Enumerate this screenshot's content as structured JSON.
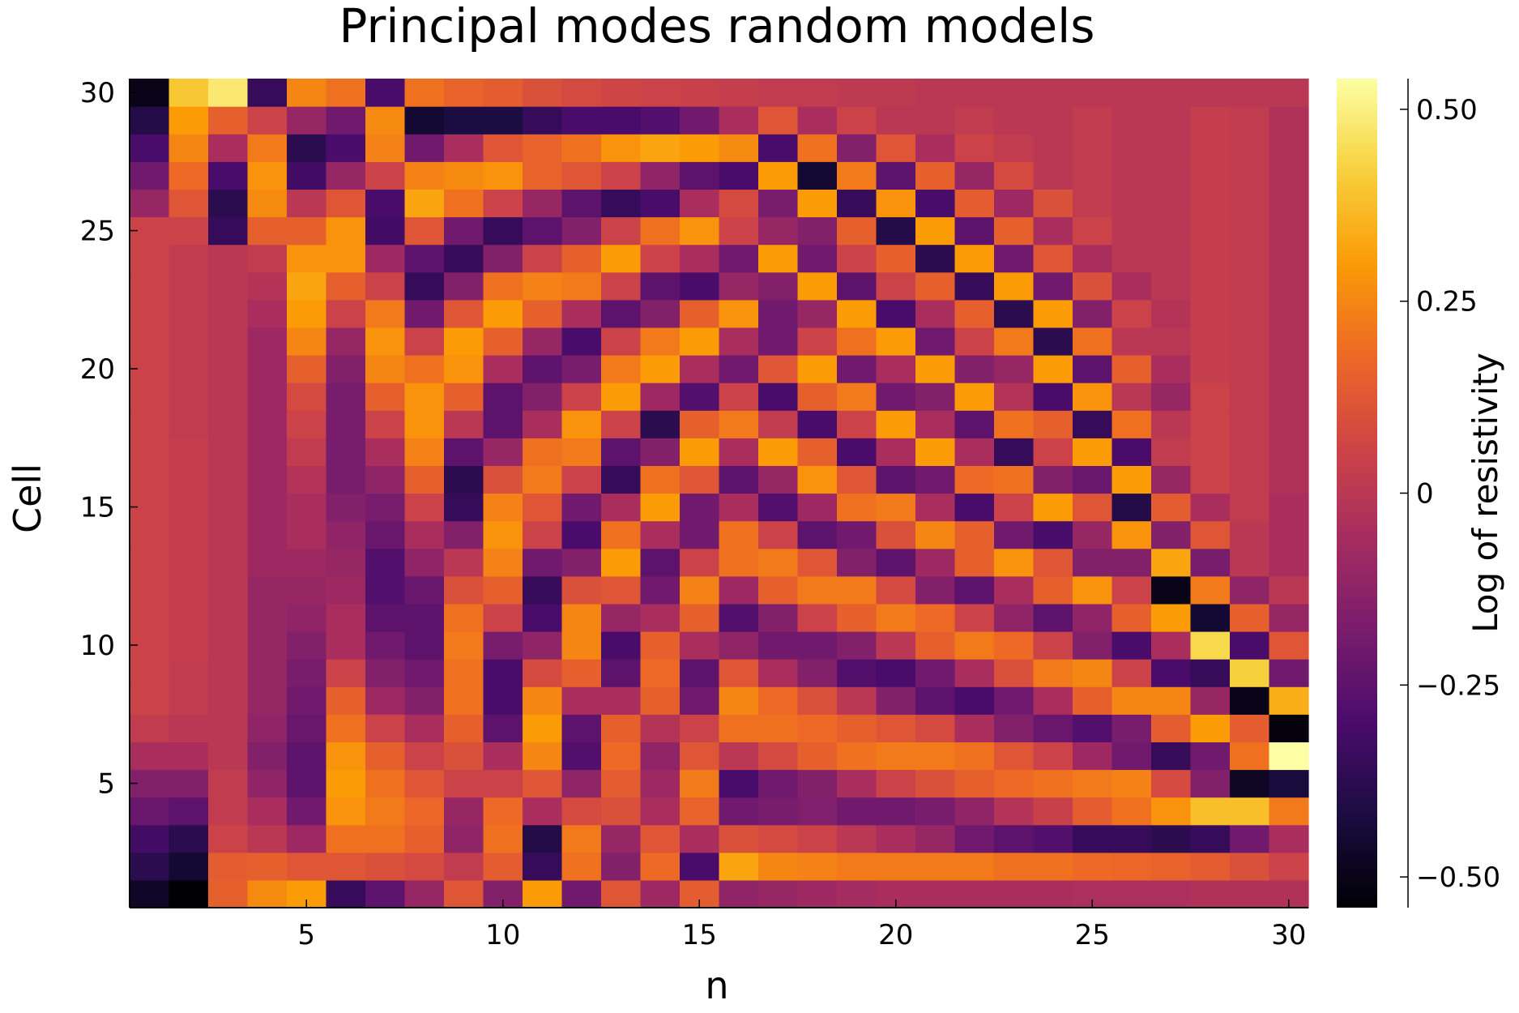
{
  "chart_data": {
    "type": "heatmap",
    "title": "Principal modes random models",
    "xlabel": "n",
    "ylabel": "Cell",
    "colorbar_label": "Log of resistivity",
    "x_ticks": [
      5,
      10,
      15,
      20,
      25,
      30
    ],
    "y_ticks": [
      5,
      10,
      15,
      20,
      25,
      30
    ],
    "colorbar_ticks": [
      {
        "value": 0.5,
        "label": "0.50"
      },
      {
        "value": 0.25,
        "label": "0.25"
      },
      {
        "value": 0,
        "label": "0"
      },
      {
        "value": -0.25,
        "label": "−0.25"
      },
      {
        "value": -0.5,
        "label": "−0.50"
      }
    ],
    "x_range": [
      0.5,
      30.5
    ],
    "y_range": [
      0.5,
      30.5
    ],
    "z_range": [
      -0.54,
      0.54
    ],
    "colormap": "inferno",
    "colormap_stops": [
      "#000004",
      "#1b0c41",
      "#4a0c6b",
      "#781c6d",
      "#a52c60",
      "#cf4446",
      "#ed6925",
      "#fb9b06",
      "#f7d13d",
      "#fcffa4"
    ],
    "grid": false,
    "legend": "colorbar-right",
    "rows_note": "values[i][j]: cell i+1 (1 = bottom), mode n = j+1",
    "values": [
      [
        -0.47,
        -0.54,
        0.15,
        0.26,
        0.3,
        -0.35,
        -0.25,
        -0.1,
        0.12,
        -0.15,
        0.3,
        -0.2,
        0.12,
        -0.08,
        0.14,
        -0.12,
        -0.1,
        -0.08,
        -0.06,
        -0.05,
        -0.05,
        -0.05,
        -0.05,
        -0.05,
        -0.04,
        -0.04,
        -0.04,
        -0.03,
        -0.03,
        -0.03
      ],
      [
        -0.38,
        -0.45,
        0.14,
        0.15,
        0.12,
        0.12,
        0.1,
        0.08,
        0.02,
        0.14,
        -0.35,
        0.2,
        -0.15,
        0.18,
        -0.3,
        0.32,
        0.25,
        0.24,
        0.22,
        0.22,
        0.22,
        0.22,
        0.2,
        0.2,
        0.18,
        0.17,
        0.16,
        0.14,
        0.1,
        0.05
      ],
      [
        -0.32,
        -0.38,
        0.05,
        0.0,
        -0.08,
        0.2,
        0.2,
        0.15,
        -0.12,
        0.2,
        -0.4,
        0.22,
        -0.1,
        0.12,
        -0.05,
        0.1,
        0.08,
        0.05,
        0.0,
        -0.05,
        -0.1,
        -0.2,
        -0.25,
        -0.28,
        -0.35,
        -0.35,
        -0.38,
        -0.35,
        -0.2,
        -0.05
      ],
      [
        -0.22,
        -0.25,
        0.02,
        -0.05,
        -0.2,
        0.28,
        0.22,
        0.17,
        -0.1,
        0.18,
        -0.05,
        0.08,
        0.1,
        -0.05,
        0.16,
        -0.2,
        -0.18,
        -0.16,
        -0.2,
        -0.2,
        -0.18,
        -0.12,
        -0.02,
        0.04,
        0.14,
        0.2,
        0.28,
        0.38,
        0.38,
        0.22
      ],
      [
        -0.15,
        -0.15,
        0.02,
        -0.12,
        -0.25,
        0.3,
        0.2,
        0.12,
        0.05,
        0.05,
        0.12,
        -0.12,
        0.14,
        -0.08,
        0.22,
        -0.3,
        -0.2,
        -0.15,
        -0.05,
        0.05,
        0.1,
        0.15,
        0.18,
        0.2,
        0.22,
        0.24,
        0.08,
        -0.15,
        -0.48,
        -0.43
      ],
      [
        -0.05,
        -0.05,
        0.0,
        -0.15,
        -0.25,
        0.28,
        0.15,
        0.05,
        0.1,
        -0.05,
        0.25,
        -0.28,
        0.18,
        -0.12,
        0.12,
        0.0,
        0.08,
        0.15,
        0.2,
        0.22,
        0.22,
        0.2,
        0.12,
        0.05,
        -0.08,
        -0.2,
        -0.35,
        -0.2,
        0.2,
        0.54
      ],
      [
        0.02,
        0.0,
        0.0,
        -0.12,
        -0.22,
        0.2,
        0.05,
        -0.05,
        0.15,
        -0.25,
        0.3,
        -0.25,
        0.15,
        -0.02,
        0.05,
        0.2,
        0.2,
        0.18,
        0.15,
        0.12,
        0.08,
        -0.05,
        -0.15,
        -0.22,
        -0.28,
        -0.18,
        0.14,
        0.3,
        0.14,
        -0.52
      ],
      [
        0.05,
        0.02,
        0.0,
        -0.1,
        -0.2,
        0.15,
        -0.08,
        -0.15,
        0.2,
        -0.3,
        0.25,
        -0.05,
        -0.05,
        0.15,
        -0.2,
        0.25,
        0.18,
        0.1,
        0.0,
        -0.15,
        -0.25,
        -0.3,
        -0.2,
        -0.05,
        0.15,
        0.25,
        0.25,
        -0.1,
        -0.5,
        0.34
      ],
      [
        0.05,
        0.02,
        0.0,
        -0.1,
        -0.18,
        0.05,
        -0.15,
        -0.2,
        0.2,
        -0.3,
        0.08,
        0.15,
        -0.25,
        0.18,
        -0.25,
        0.12,
        -0.05,
        -0.15,
        -0.28,
        -0.3,
        -0.2,
        -0.05,
        0.1,
        0.22,
        0.25,
        0.05,
        -0.3,
        -0.35,
        0.42,
        -0.2
      ],
      [
        0.05,
        0.03,
        0.0,
        -0.1,
        -0.15,
        -0.05,
        -0.2,
        -0.25,
        0.22,
        -0.18,
        -0.12,
        0.25,
        -0.3,
        0.15,
        -0.05,
        -0.12,
        -0.2,
        -0.2,
        -0.15,
        0.0,
        0.15,
        0.22,
        0.18,
        0.05,
        -0.15,
        -0.3,
        -0.05,
        0.44,
        -0.3,
        0.12
      ],
      [
        0.05,
        0.03,
        0.0,
        -0.1,
        -0.12,
        -0.05,
        -0.25,
        -0.25,
        0.2,
        0.05,
        -0.3,
        0.25,
        -0.1,
        -0.05,
        0.15,
        -0.28,
        -0.15,
        0.05,
        0.15,
        0.22,
        0.18,
        0.05,
        -0.12,
        -0.25,
        -0.12,
        0.15,
        0.3,
        -0.45,
        0.15,
        -0.1
      ],
      [
        0.05,
        0.03,
        0.0,
        -0.1,
        -0.1,
        -0.08,
        -0.28,
        -0.22,
        0.1,
        0.15,
        -0.35,
        0.1,
        0.12,
        -0.2,
        0.24,
        -0.08,
        0.15,
        0.22,
        0.22,
        0.08,
        -0.15,
        -0.25,
        -0.05,
        0.15,
        0.28,
        0.05,
        -0.5,
        0.22,
        -0.12,
        0.0
      ],
      [
        0.05,
        0.03,
        0.0,
        -0.08,
        -0.08,
        -0.1,
        -0.28,
        -0.12,
        0.0,
        0.24,
        -0.2,
        -0.15,
        0.3,
        -0.25,
        0.05,
        0.2,
        0.22,
        0.12,
        -0.15,
        -0.25,
        -0.08,
        0.15,
        0.28,
        0.12,
        -0.15,
        -0.15,
        0.32,
        -0.18,
        0.0,
        -0.05
      ],
      [
        0.05,
        0.03,
        0.0,
        -0.08,
        -0.05,
        -0.12,
        -0.22,
        -0.05,
        -0.15,
        0.28,
        0.05,
        -0.3,
        0.2,
        -0.05,
        -0.2,
        0.2,
        0.05,
        -0.25,
        -0.2,
        0.1,
        0.25,
        0.15,
        -0.2,
        -0.3,
        -0.1,
        0.28,
        -0.15,
        0.12,
        0.0,
        -0.05
      ],
      [
        0.05,
        0.03,
        0.0,
        -0.08,
        -0.05,
        -0.15,
        -0.18,
        0.05,
        -0.35,
        0.24,
        0.12,
        -0.2,
        -0.05,
        0.3,
        -0.2,
        -0.05,
        -0.28,
        -0.08,
        0.2,
        0.22,
        -0.05,
        -0.3,
        0.05,
        0.3,
        0.12,
        -0.4,
        0.14,
        -0.05,
        0.02,
        -0.05
      ],
      [
        0.05,
        0.03,
        0.0,
        -0.08,
        -0.02,
        -0.18,
        -0.12,
        0.15,
        -0.38,
        0.1,
        0.22,
        0.05,
        -0.35,
        0.2,
        0.12,
        -0.25,
        -0.1,
        0.28,
        0.12,
        -0.25,
        -0.2,
        0.18,
        0.2,
        -0.15,
        -0.22,
        0.3,
        -0.1,
        0.05,
        0.02,
        -0.03
      ],
      [
        0.05,
        0.03,
        0.0,
        -0.08,
        0.02,
        -0.18,
        -0.05,
        0.24,
        -0.25,
        -0.1,
        0.2,
        0.22,
        -0.25,
        -0.15,
        0.3,
        -0.05,
        0.3,
        0.15,
        -0.3,
        -0.05,
        0.3,
        -0.05,
        -0.35,
        0.05,
        0.3,
        -0.3,
        0.02,
        0.05,
        0.02,
        -0.03
      ],
      [
        0.05,
        0.02,
        0.0,
        -0.08,
        0.05,
        -0.18,
        0.05,
        0.28,
        0.0,
        -0.25,
        -0.05,
        0.28,
        0.05,
        -0.38,
        0.15,
        0.22,
        0.02,
        -0.3,
        0.05,
        0.3,
        -0.05,
        -0.25,
        0.2,
        0.15,
        -0.35,
        0.2,
        0.0,
        0.05,
        0.02,
        -0.03
      ],
      [
        0.05,
        0.02,
        0.0,
        -0.08,
        0.08,
        -0.18,
        0.15,
        0.28,
        0.15,
        -0.25,
        -0.15,
        0.05,
        0.3,
        -0.08,
        -0.28,
        0.05,
        -0.3,
        0.15,
        0.22,
        -0.2,
        -0.15,
        0.3,
        -0.02,
        -0.3,
        0.28,
        0.0,
        -0.1,
        0.05,
        0.02,
        -0.03
      ],
      [
        0.05,
        0.02,
        0.0,
        -0.08,
        0.15,
        -0.15,
        0.25,
        0.2,
        0.28,
        -0.05,
        -0.25,
        -0.18,
        0.22,
        0.3,
        -0.05,
        -0.2,
        0.12,
        0.3,
        -0.2,
        -0.05,
        0.3,
        -0.15,
        -0.1,
        0.3,
        -0.25,
        0.15,
        -0.05,
        0.03,
        0.02,
        -0.03
      ],
      [
        0.05,
        0.02,
        0.0,
        -0.08,
        0.25,
        -0.1,
        0.28,
        0.05,
        0.3,
        0.15,
        -0.1,
        -0.3,
        0.05,
        0.22,
        0.3,
        -0.05,
        -0.2,
        0.05,
        0.2,
        0.3,
        -0.2,
        0.05,
        0.22,
        -0.38,
        0.2,
        0.0,
        0.0,
        0.03,
        0.02,
        -0.03
      ],
      [
        0.05,
        0.02,
        0.0,
        -0.05,
        0.3,
        0.05,
        0.22,
        -0.2,
        0.12,
        0.3,
        0.15,
        -0.05,
        -0.25,
        -0.15,
        0.15,
        0.28,
        -0.2,
        -0.1,
        0.3,
        -0.3,
        -0.05,
        0.15,
        -0.38,
        0.3,
        -0.15,
        0.05,
        -0.02,
        0.03,
        0.02,
        -0.03
      ],
      [
        0.05,
        0.02,
        0.0,
        -0.02,
        0.32,
        0.15,
        0.05,
        -0.35,
        -0.15,
        0.2,
        0.24,
        0.22,
        0.05,
        -0.25,
        -0.3,
        -0.1,
        -0.15,
        0.3,
        -0.25,
        0.05,
        0.15,
        -0.35,
        0.3,
        -0.2,
        0.1,
        -0.05,
        0.0,
        0.03,
        0.02,
        -0.03
      ],
      [
        0.05,
        0.02,
        0.0,
        0.02,
        0.28,
        0.28,
        -0.08,
        -0.25,
        -0.35,
        -0.15,
        0.05,
        0.15,
        0.3,
        0.05,
        -0.05,
        -0.2,
        0.3,
        -0.2,
        0.05,
        0.15,
        -0.38,
        0.3,
        -0.2,
        0.12,
        -0.05,
        0.0,
        0.0,
        0.03,
        0.02,
        -0.03
      ],
      [
        0.05,
        0.05,
        -0.35,
        0.15,
        0.15,
        0.28,
        -0.32,
        0.12,
        -0.2,
        -0.35,
        -0.25,
        -0.15,
        0.05,
        0.2,
        0.28,
        0.05,
        -0.1,
        -0.15,
        0.15,
        -0.4,
        0.3,
        -0.25,
        0.15,
        -0.05,
        0.05,
        0.0,
        0.0,
        0.03,
        0.02,
        -0.03
      ],
      [
        -0.1,
        0.12,
        -0.38,
        0.26,
        0.0,
        0.12,
        -0.3,
        0.32,
        0.2,
        0.05,
        -0.1,
        -0.25,
        -0.35,
        -0.3,
        -0.05,
        0.08,
        -0.18,
        0.3,
        -0.35,
        0.28,
        -0.3,
        0.14,
        -0.08,
        0.1,
        0.02,
        0.0,
        0.0,
        0.03,
        0.02,
        -0.03
      ],
      [
        -0.2,
        0.18,
        -0.3,
        0.28,
        -0.32,
        -0.1,
        0.05,
        0.24,
        0.26,
        0.28,
        0.16,
        0.12,
        0.05,
        -0.12,
        -0.25,
        -0.3,
        0.3,
        -0.45,
        0.22,
        -0.25,
        0.15,
        -0.1,
        0.08,
        0.0,
        0.02,
        0.0,
        0.0,
        0.03,
        0.02,
        -0.03
      ],
      [
        -0.3,
        0.25,
        -0.05,
        0.22,
        -0.38,
        -0.3,
        0.24,
        -0.2,
        -0.05,
        0.12,
        0.16,
        0.2,
        0.28,
        0.32,
        0.3,
        0.26,
        -0.3,
        0.2,
        -0.15,
        0.12,
        -0.05,
        0.05,
        0.02,
        0.0,
        0.02,
        0.0,
        0.0,
        0.03,
        0.02,
        -0.03
      ],
      [
        -0.4,
        0.3,
        0.15,
        0.05,
        -0.1,
        -0.2,
        0.26,
        -0.45,
        -0.42,
        -0.42,
        -0.35,
        -0.3,
        -0.3,
        -0.28,
        -0.2,
        -0.05,
        0.12,
        -0.05,
        0.05,
        0.0,
        0.0,
        0.02,
        0.0,
        0.0,
        0.02,
        0.0,
        0.0,
        0.03,
        0.02,
        -0.03
      ],
      [
        -0.5,
        0.4,
        0.48,
        -0.35,
        0.25,
        0.2,
        -0.3,
        0.2,
        0.16,
        0.14,
        0.1,
        0.08,
        0.06,
        0.05,
        0.04,
        0.03,
        0.02,
        0.02,
        0.01,
        0.01,
        0.0,
        0.0,
        0.0,
        0.0,
        0.0,
        0.0,
        0.0,
        0.0,
        0.0,
        0.0
      ]
    ]
  }
}
